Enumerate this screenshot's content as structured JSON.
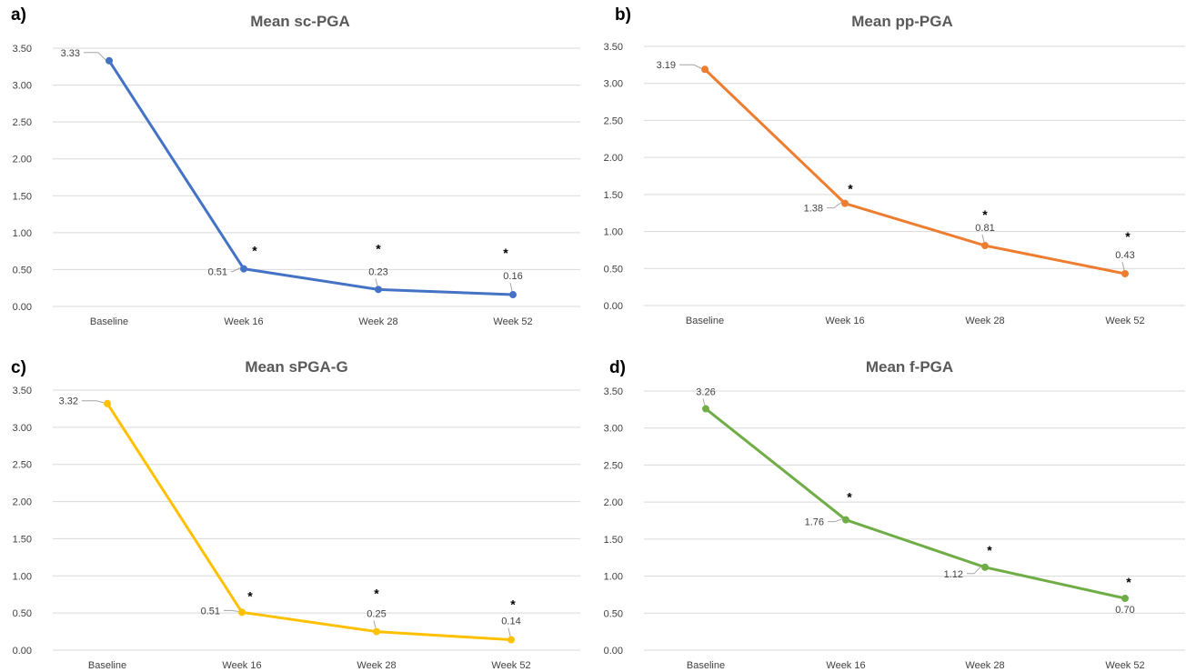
{
  "chart_data": [
    {
      "panel": "a)",
      "type": "line",
      "title": "Mean sc-PGA",
      "categories": [
        "Baseline",
        "Week 16",
        "Week 28",
        "Week 52"
      ],
      "series": [
        {
          "values": [
            3.33,
            0.51,
            0.23,
            0.16
          ]
        }
      ],
      "data_labels": [
        "3.33",
        "0.51",
        "0.23",
        "0.16"
      ],
      "significance_markers": [
        "",
        "*",
        "*",
        "*"
      ],
      "yticks": [
        "0.00",
        "0.50",
        "1.00",
        "1.50",
        "2.00",
        "2.50",
        "3.00",
        "3.50"
      ],
      "ylim": [
        0,
        3.5
      ],
      "grid": true,
      "color": "#4472C4"
    },
    {
      "panel": "b)",
      "type": "line",
      "title": "Mean pp-PGA",
      "categories": [
        "Baseline",
        "Week 16",
        "Week 28",
        "Week 52"
      ],
      "series": [
        {
          "values": [
            3.19,
            1.38,
            0.81,
            0.43
          ]
        }
      ],
      "data_labels": [
        "3.19",
        "1.38",
        "0.81",
        "0.43"
      ],
      "significance_markers": [
        "",
        "*",
        "*",
        "*"
      ],
      "yticks": [
        "0.00",
        "0.50",
        "1.00",
        "1.50",
        "2.00",
        "2.50",
        "3.00",
        "3.50"
      ],
      "ylim": [
        0,
        3.5
      ],
      "grid": true,
      "color": "#ED7D31"
    },
    {
      "panel": "c)",
      "type": "line",
      "title": "Mean sPGA-G",
      "categories": [
        "Baseline",
        "Week 16",
        "Week 28",
        "Week 52"
      ],
      "series": [
        {
          "values": [
            3.32,
            0.51,
            0.25,
            0.14
          ]
        }
      ],
      "data_labels": [
        "3.32",
        "0.51",
        "0.25",
        "0.14"
      ],
      "significance_markers": [
        "",
        "*",
        "*",
        "*"
      ],
      "yticks": [
        "0.00",
        "0.50",
        "1.00",
        "1.50",
        "2.00",
        "2.50",
        "3.00",
        "3.50"
      ],
      "ylim": [
        0,
        3.5
      ],
      "grid": true,
      "color": "#FFC000"
    },
    {
      "panel": "d)",
      "type": "line",
      "title": "Mean f-PGA",
      "categories": [
        "Baseline",
        "Week 16",
        "Week 28",
        "Week 52"
      ],
      "series": [
        {
          "values": [
            3.26,
            1.76,
            1.12,
            0.7
          ]
        }
      ],
      "data_labels": [
        "3.26",
        "1.76",
        "1.12",
        "0.70"
      ],
      "significance_markers": [
        "",
        "*",
        "*",
        "*"
      ],
      "yticks": [
        "0.00",
        "0.50",
        "1.00",
        "1.50",
        "2.00",
        "2.50",
        "3.00",
        "3.50"
      ],
      "ylim": [
        0,
        3.5
      ],
      "grid": true,
      "color": "#70AD47"
    }
  ]
}
